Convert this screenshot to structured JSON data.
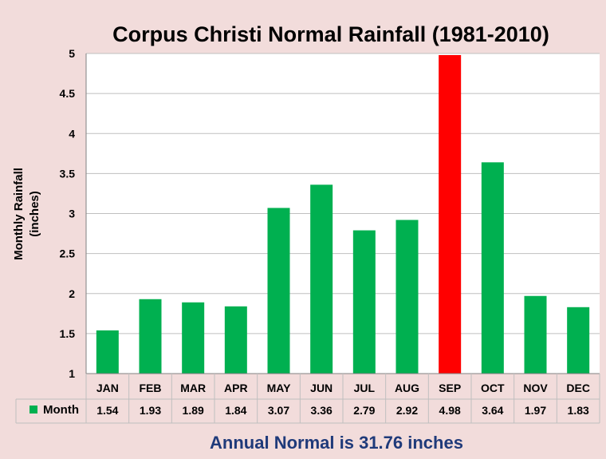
{
  "chart_data": {
    "type": "bar",
    "title": "Corpus Christi Normal Rainfall (1981-2010)",
    "ylabel_line1": "Monthly Rainfall",
    "ylabel_line2": "(inches)",
    "ylim": [
      1,
      5
    ],
    "yticks": [
      "1",
      "1.5",
      "2",
      "2.5",
      "3",
      "3.5",
      "4",
      "4.5",
      "5"
    ],
    "categories": [
      "JAN",
      "FEB",
      "MAR",
      "APR",
      "MAY",
      "JUN",
      "JUL",
      "AUG",
      "SEP",
      "OCT",
      "NOV",
      "DEC"
    ],
    "series": [
      {
        "name": "Month",
        "values": [
          1.54,
          1.93,
          1.89,
          1.84,
          3.07,
          3.36,
          2.79,
          2.92,
          4.98,
          3.64,
          1.97,
          1.83
        ],
        "value_labels": [
          "1.54",
          "1.93",
          "1.89",
          "1.84",
          "3.07",
          "3.36",
          "2.79",
          "2.92",
          "4.98",
          "3.64",
          "1.97",
          "1.83"
        ]
      }
    ],
    "highlight_index": 8,
    "grid": true,
    "legend_placement": "bottom-left data table"
  },
  "colors": {
    "bar": "#00b050",
    "highlight": "#ff0000",
    "grid": "#bfbfbf",
    "footer_text": "#1f3a7a",
    "background": "#f2dcdb",
    "plot_background": "#ffffff"
  },
  "footer_text": "Annual Normal is 31.76 inches"
}
